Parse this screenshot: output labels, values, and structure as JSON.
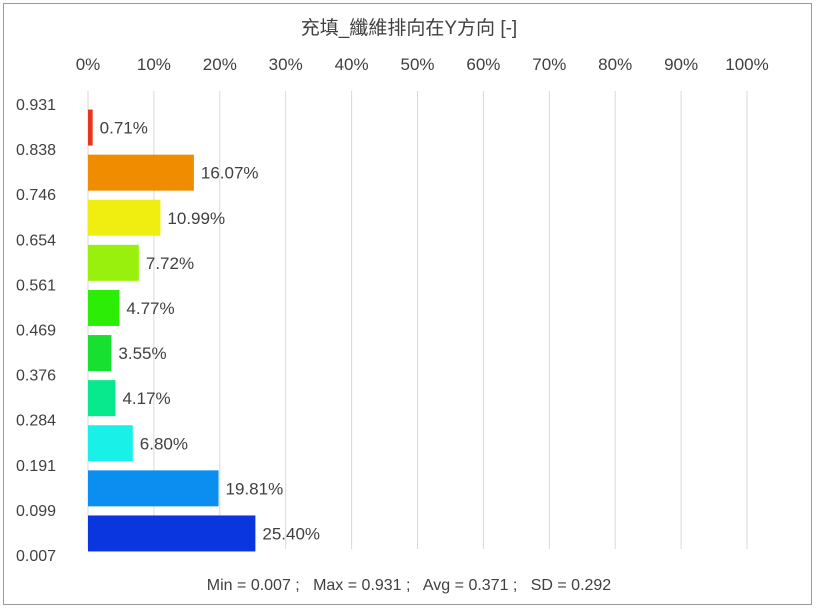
{
  "chart_data": {
    "type": "bar",
    "orientation": "horizontal",
    "title": "充填_纖維排向在Y方向 [-]",
    "x_ticks": [
      "0%",
      "10%",
      "20%",
      "30%",
      "40%",
      "50%",
      "60%",
      "70%",
      "80%",
      "90%",
      "100%"
    ],
    "xlim": [
      0,
      100
    ],
    "x_axis_position": "top",
    "grid": true,
    "y_boundaries": [
      "0.931",
      "0.838",
      "0.746",
      "0.654",
      "0.561",
      "0.469",
      "0.376",
      "0.284",
      "0.191",
      "0.099",
      "0.007"
    ],
    "bars": [
      {
        "value": 0.71,
        "label": "0.71%",
        "color": "#e8351f"
      },
      {
        "value": 16.07,
        "label": "16.07%",
        "color": "#ef8c00"
      },
      {
        "value": 10.99,
        "label": "10.99%",
        "color": "#f0ee10"
      },
      {
        "value": 7.72,
        "label": "7.72%",
        "color": "#98f00c"
      },
      {
        "value": 4.77,
        "label": "4.77%",
        "color": "#2ced06"
      },
      {
        "value": 3.55,
        "label": "3.55%",
        "color": "#18e030"
      },
      {
        "value": 4.17,
        "label": "4.17%",
        "color": "#08e88c"
      },
      {
        "value": 6.8,
        "label": "6.80%",
        "color": "#18f0e8"
      },
      {
        "value": 19.81,
        "label": "19.81%",
        "color": "#0a8ef0"
      },
      {
        "value": 25.4,
        "label": "25.40%",
        "color": "#0a36e0"
      }
    ],
    "stats_text": "Min = 0.007 ;   Max = 0.931 ;   Avg = 0.371 ;   SD = 0.292"
  }
}
